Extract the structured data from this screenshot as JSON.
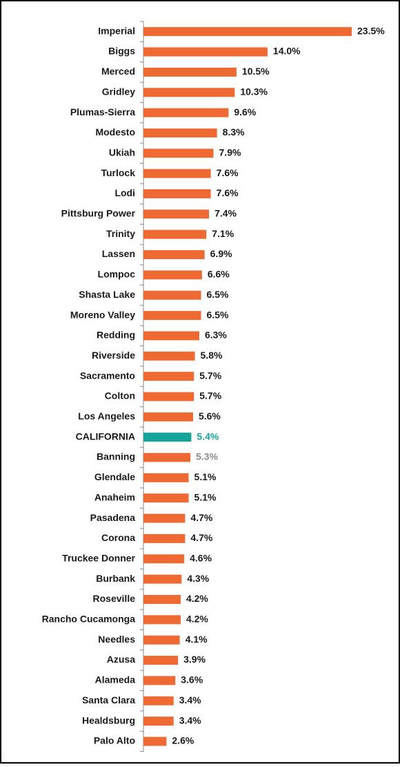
{
  "chart_data": {
    "type": "bar",
    "orientation": "horizontal",
    "categories": [
      "Imperial",
      "Biggs",
      "Merced",
      "Gridley",
      "Plumas-Sierra",
      "Modesto",
      "Ukiah",
      "Turlock",
      "Lodi",
      "Pittsburg Power",
      "Trinity",
      "Lassen",
      "Lompoc",
      "Shasta Lake",
      "Moreno Valley",
      "Redding",
      "Riverside",
      "Sacramento",
      "Colton",
      "Los Angeles",
      "CALIFORNIA",
      "Banning",
      "Glendale",
      "Anaheim",
      "Pasadena",
      "Corona",
      "Truckee Donner",
      "Burbank",
      "Roseville",
      "Rancho Cucamonga",
      "Needles",
      "Azusa",
      "Alameda",
      "Santa Clara",
      "Healdsburg",
      "Palo Alto"
    ],
    "values": [
      23.5,
      14.0,
      10.5,
      10.3,
      9.6,
      8.3,
      7.9,
      7.6,
      7.6,
      7.4,
      7.1,
      6.9,
      6.6,
      6.5,
      6.5,
      6.3,
      5.8,
      5.7,
      5.7,
      5.6,
      5.4,
      5.3,
      5.1,
      5.1,
      4.7,
      4.7,
      4.6,
      4.3,
      4.2,
      4.2,
      4.1,
      3.9,
      3.6,
      3.4,
      3.4,
      2.6
    ],
    "value_labels": [
      "23.5%",
      "14.0%",
      "10.5%",
      "10.3%",
      "9.6%",
      "8.3%",
      "7.9%",
      "7.6%",
      "7.6%",
      "7.4%",
      "7.1%",
      "6.9%",
      "6.6%",
      "6.5%",
      "6.5%",
      "6.3%",
      "5.8%",
      "5.7%",
      "5.7%",
      "5.6%",
      "5.4%",
      "5.3%",
      "5.1%",
      "5.1%",
      "4.7%",
      "4.7%",
      "4.6%",
      "4.3%",
      "4.2%",
      "4.2%",
      "4.1%",
      "3.9%",
      "3.6%",
      "3.4%",
      "3.4%",
      "2.6%"
    ],
    "color": "#ef6a32",
    "highlight": {
      "index": 20,
      "color": "#16a397"
    },
    "muted_label": {
      "index": 21,
      "color": "#8a8a8a"
    }
  }
}
